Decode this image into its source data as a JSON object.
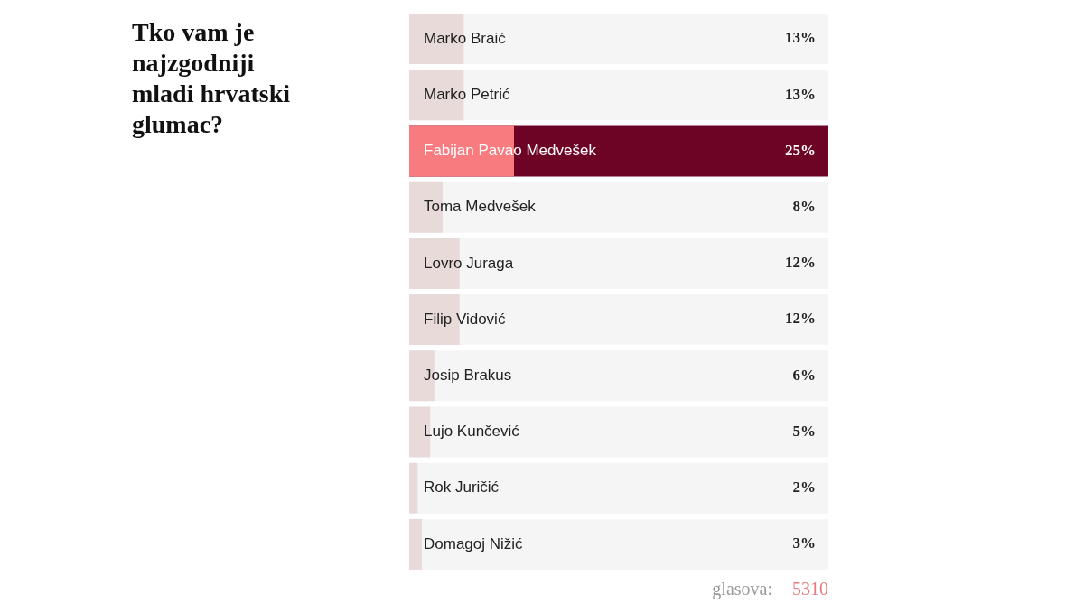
{
  "chart_data": {
    "type": "bar",
    "orientation": "horizontal",
    "title": "Tko vam je najzgodniji mladi hrvatski glumac?",
    "categories": [
      "Marko Braić",
      "Marko Petrić",
      "Fabijan Pavao Medvešek",
      "Toma Medvešek",
      "Lovro Juraga",
      "Filip Vidović",
      "Josip Brakus",
      "Lujo Kunčević",
      "Rok Juričić",
      "Domagoj Nižić"
    ],
    "values": [
      13,
      13,
      25,
      8,
      12,
      12,
      6,
      5,
      2,
      3
    ],
    "colors": [
      "#e9dada",
      "#e9dada",
      "#f87b7f",
      "#e9dada",
      "#e9dada",
      "#e9dada",
      "#e9dada",
      "#e9dada",
      "#e9dada",
      "#e9dada"
    ],
    "value_labels": [
      "13%",
      "13%",
      "25%",
      "8%",
      "12%",
      "12%",
      "6%",
      "5%",
      "2%",
      "3%"
    ],
    "xlim": [
      0,
      100
    ],
    "bands": [
      {
        "axis": "y",
        "from": "Fabijan Pavao Medvešek",
        "to": "Fabijan Pavao Medvešek",
        "color": "#6d0426"
      }
    ],
    "tick_labels": "y",
    "annotations": [
      "glasova: 5310"
    ]
  }
}
